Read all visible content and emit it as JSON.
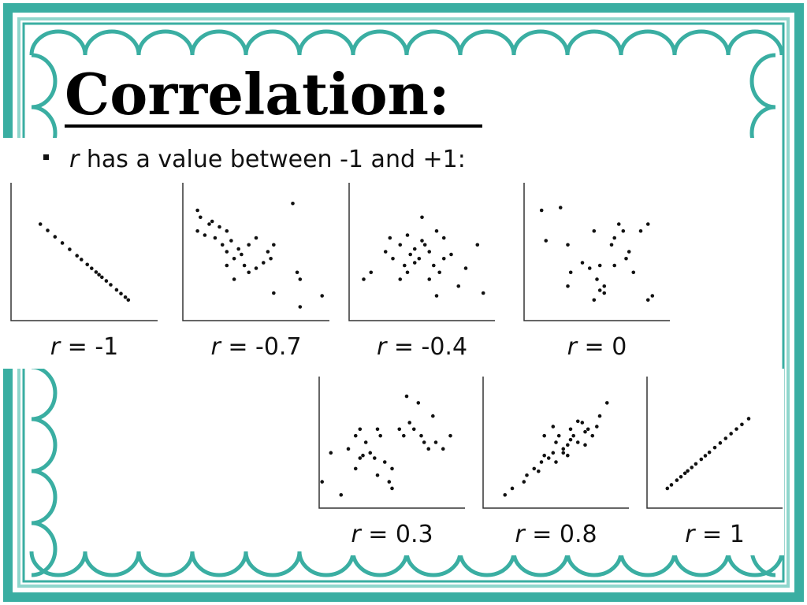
{
  "title": "Correlation:",
  "bullet": {
    "italic": "r",
    "text": " has a value between -1 and +1:"
  },
  "panels": [
    {
      "italic": "r",
      "label": " = -1",
      "x": [
        20,
        25,
        30,
        35,
        40,
        45,
        48,
        52,
        55,
        58,
        60,
        62,
        65,
        68,
        72,
        75,
        78,
        80
      ],
      "y": [
        70,
        65.4,
        60.8,
        56.3,
        51.7,
        47.1,
        44.3,
        40.7,
        37.9,
        35.2,
        33.3,
        31.5,
        28.8,
        26,
        22.3,
        19.6,
        17,
        15
      ]
    },
    {
      "italic": "r",
      "label": " = -0.7",
      "x": [
        10,
        12,
        10,
        15,
        18,
        20,
        22,
        25,
        27,
        30,
        30,
        33,
        35,
        38,
        40,
        42,
        45,
        50,
        55,
        58,
        60,
        62,
        75,
        78,
        80,
        95,
        80,
        62,
        30,
        50,
        45,
        35
      ],
      "y": [
        80,
        75,
        65,
        62,
        70,
        72,
        60,
        68,
        55,
        65,
        50,
        58,
        45,
        52,
        48,
        40,
        55,
        38,
        42,
        50,
        45,
        55,
        85,
        35,
        30,
        18,
        10,
        20,
        40,
        60,
        35,
        30
      ]
    },
    {
      "italic": "r",
      "label": " = -0.4",
      "x": [
        10,
        15,
        25,
        28,
        30,
        35,
        38,
        40,
        42,
        45,
        48,
        50,
        52,
        55,
        58,
        60,
        62,
        65,
        70,
        75,
        80,
        88,
        92,
        35,
        45,
        55,
        60,
        50,
        40,
        65
      ],
      "y": [
        30,
        35,
        50,
        60,
        45,
        55,
        40,
        62,
        48,
        52,
        45,
        75,
        55,
        50,
        40,
        65,
        35,
        45,
        48,
        25,
        38,
        55,
        20,
        30,
        42,
        30,
        18,
        58,
        35,
        60
      ]
    },
    {
      "italic": "r",
      "label": " = 0",
      "x": [
        12,
        25,
        15,
        30,
        32,
        40,
        45,
        48,
        50,
        52,
        55,
        60,
        62,
        65,
        68,
        70,
        72,
        75,
        80,
        85,
        88,
        48,
        52,
        55,
        30,
        62,
        85
      ],
      "y": [
        80,
        82,
        58,
        55,
        35,
        42,
        38,
        65,
        30,
        40,
        20,
        55,
        40,
        70,
        65,
        45,
        50,
        35,
        65,
        70,
        18,
        15,
        22,
        25,
        25,
        60,
        15
      ]
    },
    {
      "italic": "r",
      "label": " = 0.3",
      "x": [
        2,
        8,
        15,
        20,
        25,
        28,
        30,
        32,
        35,
        38,
        40,
        42,
        45,
        48,
        50,
        55,
        58,
        60,
        62,
        65,
        68,
        70,
        72,
        75,
        78,
        80,
        85,
        90,
        50,
        40,
        28,
        25
      ],
      "y": [
        20,
        42,
        10,
        45,
        55,
        60,
        40,
        50,
        42,
        38,
        60,
        55,
        35,
        20,
        30,
        60,
        55,
        85,
        65,
        60,
        80,
        55,
        50,
        45,
        70,
        50,
        45,
        55,
        15,
        25,
        38,
        30
      ]
    },
    {
      "italic": "r",
      "label": " = 0.8",
      "x": [
        15,
        20,
        28,
        30,
        35,
        38,
        40,
        42,
        45,
        48,
        50,
        52,
        55,
        58,
        60,
        62,
        65,
        68,
        70,
        72,
        75,
        78,
        80,
        85,
        42,
        48,
        55,
        60,
        65,
        70,
        50,
        58
      ],
      "y": [
        10,
        15,
        20,
        25,
        30,
        28,
        35,
        40,
        38,
        42,
        50,
        55,
        45,
        48,
        60,
        55,
        50,
        65,
        58,
        60,
        55,
        62,
        70,
        80,
        55,
        62,
        42,
        52,
        66,
        48,
        35,
        40
      ]
    },
    {
      "italic": "r",
      "label": " = 1",
      "x": [
        15,
        18,
        22,
        25,
        28,
        30,
        33,
        36,
        40,
        43,
        46,
        50,
        54,
        58,
        62,
        66,
        70,
        75
      ],
      "y": [
        15,
        17.7,
        21.2,
        23.8,
        26.5,
        28.3,
        30.9,
        33.6,
        37.1,
        39.8,
        42.4,
        46,
        49.5,
        53,
        56.6,
        60.1,
        63.6,
        68
      ]
    }
  ]
}
